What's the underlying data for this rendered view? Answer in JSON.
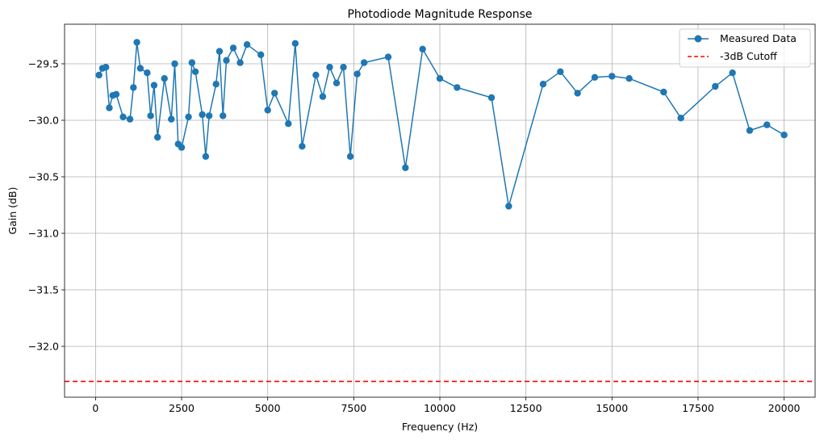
{
  "chart_data": {
    "type": "line",
    "title": "Photodiode Magnitude Response",
    "xlabel": "Frequency (Hz)",
    "ylabel": "Gain (dB)",
    "xlim": [
      -900,
      20900
    ],
    "ylim": [
      -32.45,
      -29.15
    ],
    "xticks": [
      0,
      2500,
      5000,
      7500,
      10000,
      12500,
      15000,
      17500,
      20000
    ],
    "xtick_labels": [
      "0",
      "2500",
      "5000",
      "7500",
      "10000",
      "12500",
      "15000",
      "17500",
      "20000"
    ],
    "yticks": [
      -29.5,
      -30.0,
      -30.5,
      -31.0,
      -31.5,
      -32.0
    ],
    "ytick_labels": [
      "−29.5",
      "−30.0",
      "−30.5",
      "−31.0",
      "−31.5",
      "−32.0"
    ],
    "grid": true,
    "legend_position": "top-right",
    "series": [
      {
        "name": "Measured Data",
        "color": "#1f77b4",
        "marker": "circle",
        "x": [
          100,
          200,
          300,
          400,
          500,
          600,
          800,
          1000,
          1100,
          1200,
          1300,
          1500,
          1600,
          1700,
          1800,
          2000,
          2200,
          2300,
          2400,
          2500,
          2700,
          2800,
          2900,
          3100,
          3200,
          3300,
          3500,
          3600,
          3700,
          3800,
          4000,
          4200,
          4400,
          4800,
          5000,
          5200,
          5600,
          5800,
          6000,
          6400,
          6600,
          6800,
          7000,
          7200,
          7400,
          7600,
          7800,
          8500,
          9000,
          9500,
          10000,
          10500,
          11500,
          12000,
          13000,
          13500,
          14000,
          14500,
          15000,
          15500,
          16500,
          17000,
          18000,
          18500,
          19000,
          19500,
          20000
        ],
        "y": [
          -29.6,
          -29.54,
          -29.53,
          -29.89,
          -29.78,
          -29.77,
          -29.97,
          -29.99,
          -29.71,
          -29.31,
          -29.54,
          -29.58,
          -29.96,
          -29.69,
          -30.15,
          -29.63,
          -29.99,
          -29.5,
          -30.21,
          -30.24,
          -29.97,
          -29.49,
          -29.57,
          -29.95,
          -30.32,
          -29.96,
          -29.68,
          -29.39,
          -29.96,
          -29.47,
          -29.36,
          -29.49,
          -29.33,
          -29.42,
          -29.91,
          -29.76,
          -30.03,
          -29.32,
          -30.23,
          -29.6,
          -29.79,
          -29.53,
          -29.67,
          -29.53,
          -30.32,
          -29.59,
          -29.49,
          -29.44,
          -30.42,
          -29.37,
          -29.63,
          -29.71,
          -29.8,
          -30.76,
          -29.68,
          -29.57,
          -29.76,
          -29.62,
          -29.61,
          -29.63,
          -29.75,
          -29.98,
          -29.7,
          -29.58,
          -30.09,
          -30.04,
          -30.13
        ]
      },
      {
        "name": "-3dB Cutoff",
        "color": "#ff0000",
        "style": "dashed",
        "hline": -32.31
      }
    ]
  }
}
